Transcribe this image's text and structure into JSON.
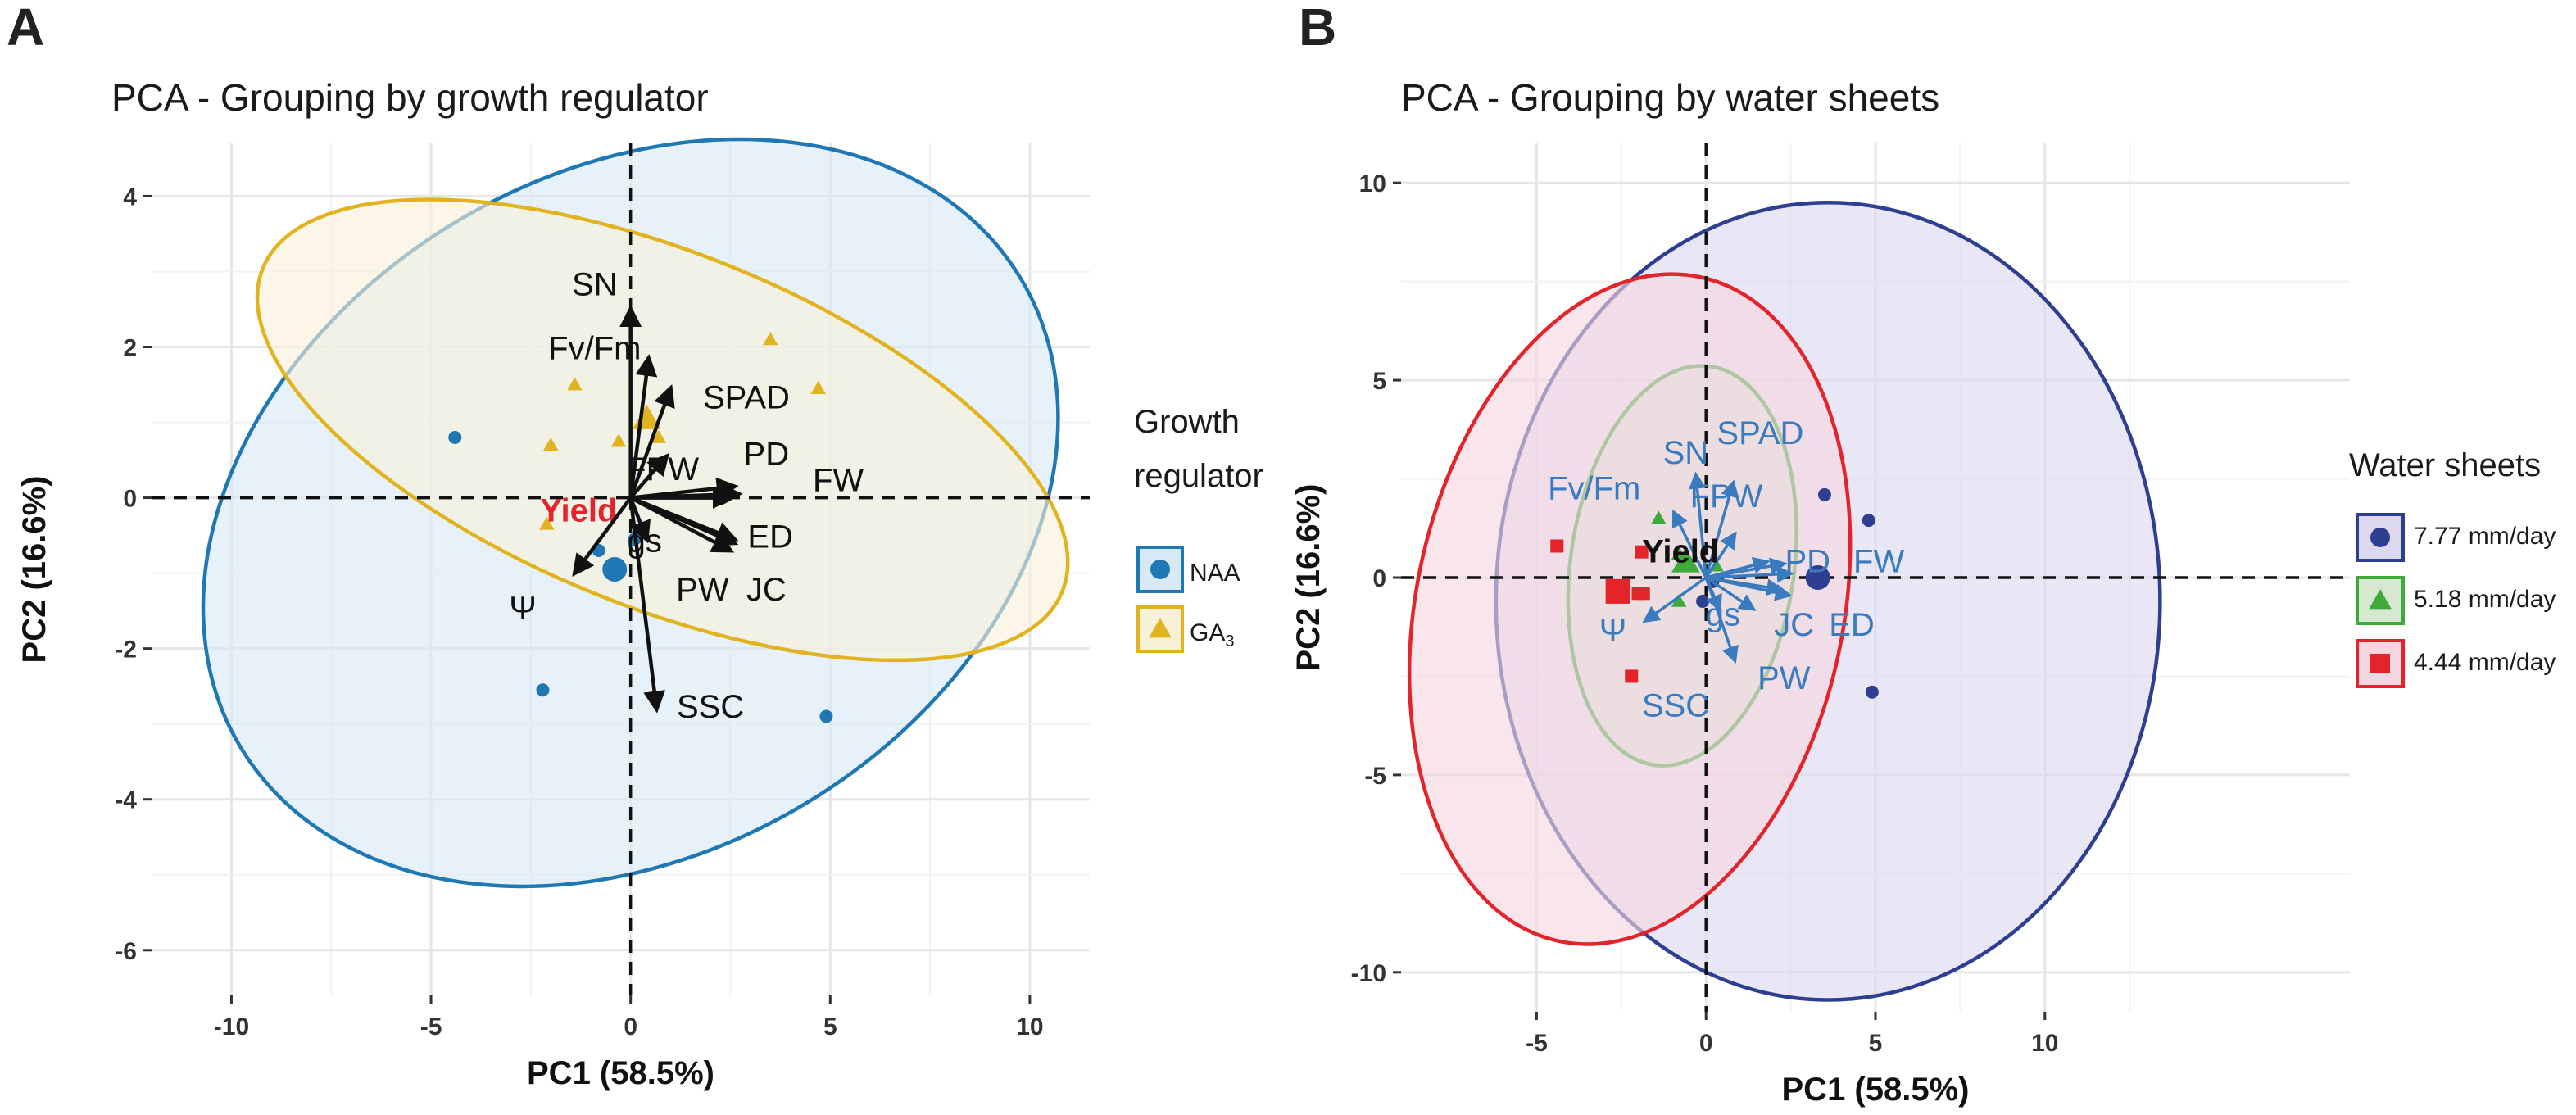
{
  "chart_data": [
    {
      "panel": "A",
      "type": "scatter",
      "title": "PCA - Grouping by growth regulator",
      "xlabel": "PC1 (58.5%)",
      "ylabel": "PC2 (16.6%)",
      "xlim": [
        -12,
        11.5
      ],
      "ylim": [
        -6.6,
        4.7
      ],
      "xticks": [
        -10,
        -5,
        0,
        5,
        10
      ],
      "yticks": [
        4,
        2,
        0,
        -2,
        -4,
        -6
      ],
      "grid": true,
      "legend": {
        "title_lines": [
          "Growth",
          "regulator"
        ],
        "position": "right",
        "items": [
          {
            "label": "NAA",
            "shape": "circle",
            "color": "#1f78b4"
          },
          {
            "label": "GA",
            "sub": "3",
            "shape": "triangle",
            "color": "#e0b31f"
          }
        ]
      },
      "series": [
        {
          "name": "NAA",
          "color": "#1f78b4",
          "fill": "#d8e9f6",
          "shape": "circle",
          "points": [
            [
              -4.4,
              0.8
            ],
            [
              -2.2,
              -2.55
            ],
            [
              4.9,
              -2.9
            ],
            [
              -0.8,
              -0.7
            ],
            [
              0.1,
              -0.55
            ]
          ],
          "centroid": [
            -0.4,
            -0.95
          ],
          "ellipse": {
            "cx": 0.0,
            "cy": -0.2,
            "rx": 11.4,
            "ry": 4.5,
            "angle": -31
          }
        },
        {
          "name": "GA3",
          "color": "#e0b31f",
          "fill": "#f8f1d8",
          "shape": "triangle",
          "points": [
            [
              -1.4,
              1.5
            ],
            [
              -2,
              0.7
            ],
            [
              -0.3,
              0.75
            ],
            [
              3.5,
              2.1
            ],
            [
              4.7,
              1.45
            ],
            [
              -2.1,
              -0.35
            ],
            [
              0.7,
              0.8
            ]
          ],
          "centroid": [
            0.4,
            1.05
          ],
          "ellipse": {
            "cx": 0.8,
            "cy": 0.9,
            "rx": 10.8,
            "ry": 2.35,
            "angle": 22
          }
        }
      ],
      "variables": [
        {
          "name": "SN",
          "x": 0.0,
          "y": 2.5,
          "lx": -0.9,
          "ly": 2.8
        },
        {
          "name": "Fv/Fm",
          "x": 0.45,
          "y": 1.85,
          "lx": -0.9,
          "ly": 1.95
        },
        {
          "name": "SPAD",
          "x": 1.0,
          "y": 1.45,
          "lx": 2.9,
          "ly": 1.3
        },
        {
          "name": "FPW",
          "x": 0.9,
          "y": 0.55,
          "lx": 0.8,
          "ly": 0.35
        },
        {
          "name": "PD",
          "x": 2.6,
          "y": 0.15,
          "lx": 3.4,
          "ly": 0.55
        },
        {
          "name": "FW",
          "x": 2.7,
          "y": 0.05,
          "lx": 5.2,
          "ly": 0.2
        },
        {
          "name": "Yield",
          "x": 2.5,
          "y": 0.0,
          "lx": -1.3,
          "ly": -0.2,
          "color": "#e3242b",
          "bold": true
        },
        {
          "name": "gs",
          "x": 0.4,
          "y": -0.55,
          "lx": 0.35,
          "ly": -0.6
        },
        {
          "name": "ED",
          "x": 2.6,
          "y": -0.6,
          "lx": 3.5,
          "ly": -0.55
        },
        {
          "name": "PW",
          "x": 2.5,
          "y": -0.7,
          "lx": 1.8,
          "ly": -1.25
        },
        {
          "name": "JC",
          "x": 2.6,
          "y": -0.55,
          "lx": 3.4,
          "ly": -1.25
        },
        {
          "name": "Ψ",
          "x": -1.4,
          "y": -1.0,
          "lx": -2.7,
          "ly": -1.5
        },
        {
          "name": "SSC",
          "x": 0.65,
          "y": -2.8,
          "lx": 2.0,
          "ly": -2.8
        }
      ]
    },
    {
      "panel": "B",
      "type": "scatter",
      "title": "PCA - Grouping by water sheets",
      "xlabel": "PC1 (58.5%)",
      "ylabel": "PC2 (16.6%)",
      "xlim": [
        -9,
        19
      ],
      "ylim": [
        -11,
        11
      ],
      "xticks": [
        -5,
        0,
        5,
        10
      ],
      "yticks": [
        10,
        5,
        0,
        -5,
        -10
      ],
      "grid": true,
      "legend": {
        "title_lines": [
          "Water sheets"
        ],
        "position": "right",
        "items": [
          {
            "label": "7.77 mm/day",
            "shape": "circle",
            "color": "#2e3f91"
          },
          {
            "label": "5.18 mm/day",
            "shape": "triangle",
            "color": "#3daa3a"
          },
          {
            "label": "4.44 mm/day",
            "shape": "square",
            "color": "#e3242b"
          }
        ]
      },
      "series": [
        {
          "name": "7.77 mm/day",
          "color": "#2e3f91",
          "fill": "#dcd9ef",
          "shape": "circle",
          "points": [
            [
              3.5,
              2.1
            ],
            [
              4.8,
              1.45
            ],
            [
              4.9,
              -2.9
            ],
            [
              -0.1,
              -0.6
            ],
            [
              0.2,
              -0.1
            ]
          ],
          "centroid": [
            3.3,
            0.0
          ],
          "ellipse": {
            "cx": 3.6,
            "cy": -0.6,
            "rx": 9.8,
            "ry": 10.1,
            "angle": 0
          }
        },
        {
          "name": "5.18 mm/day",
          "color": "#3daa3a",
          "fill": "#d6e8d2",
          "shape": "triangle",
          "points": [
            [
              -1.4,
              1.5
            ],
            [
              -0.8,
              0.6
            ],
            [
              -0.8,
              -0.6
            ],
            [
              0.3,
              0.3
            ]
          ],
          "centroid": [
            -0.6,
            0.4
          ],
          "ellipse": {
            "cx": -0.7,
            "cy": 0.3,
            "rx": 3.3,
            "ry": 5.1,
            "angle": 8
          }
        },
        {
          "name": "4.44 mm/day",
          "color": "#e3242b",
          "fill": "#f3d6e0",
          "shape": "square",
          "points": [
            [
              -4.4,
              0.8
            ],
            [
              -2.2,
              -2.5
            ],
            [
              -2.0,
              -0.4
            ],
            [
              -1.9,
              0.65
            ],
            [
              -1.85,
              -0.4
            ]
          ],
          "centroid": [
            -2.6,
            -0.35
          ],
          "ellipse": {
            "cx": -2.25,
            "cy": -0.8,
            "rx": 6.3,
            "ry": 8.6,
            "angle": 12
          }
        }
      ],
      "variables": [
        {
          "name": "SN",
          "x": -0.3,
          "y": 2.6,
          "lx": -0.6,
          "ly": 3.1
        },
        {
          "name": "SPAD",
          "x": 0.8,
          "y": 2.4,
          "lx": 1.6,
          "ly": 3.6
        },
        {
          "name": "Fv/Fm",
          "x": -0.95,
          "y": 1.65,
          "lx": -3.3,
          "ly": 2.2
        },
        {
          "name": "FPW",
          "x": 0.85,
          "y": 1.1,
          "lx": 0.6,
          "ly": 2.0
        },
        {
          "name": "PD",
          "x": 2.3,
          "y": 0.35,
          "lx": 3.0,
          "ly": 0.35
        },
        {
          "name": "FW",
          "x": 2.5,
          "y": 0.1,
          "lx": 5.1,
          "ly": 0.35
        },
        {
          "name": "Yield",
          "x": 1.8,
          "y": 0.4,
          "lx": -0.75,
          "ly": 0.6,
          "color": "#111111",
          "bold": true
        },
        {
          "name": "gs",
          "x": 0.4,
          "y": -0.8,
          "lx": 0.5,
          "ly": -1.0
        },
        {
          "name": "JC",
          "x": 2.2,
          "y": -0.3,
          "lx": 2.6,
          "ly": -1.25
        },
        {
          "name": "ED",
          "x": 2.45,
          "y": -0.45,
          "lx": 4.3,
          "ly": -1.25
        },
        {
          "name": "PW",
          "x": 1.4,
          "y": -0.8,
          "lx": 2.3,
          "ly": -2.6
        },
        {
          "name": "SSC",
          "x": 0.85,
          "y": -2.1,
          "lx": -0.9,
          "ly": -3.3
        },
        {
          "name": "Ψ",
          "x": -1.8,
          "y": -1.1,
          "lx": -2.75,
          "ly": -1.4
        }
      ]
    }
  ]
}
